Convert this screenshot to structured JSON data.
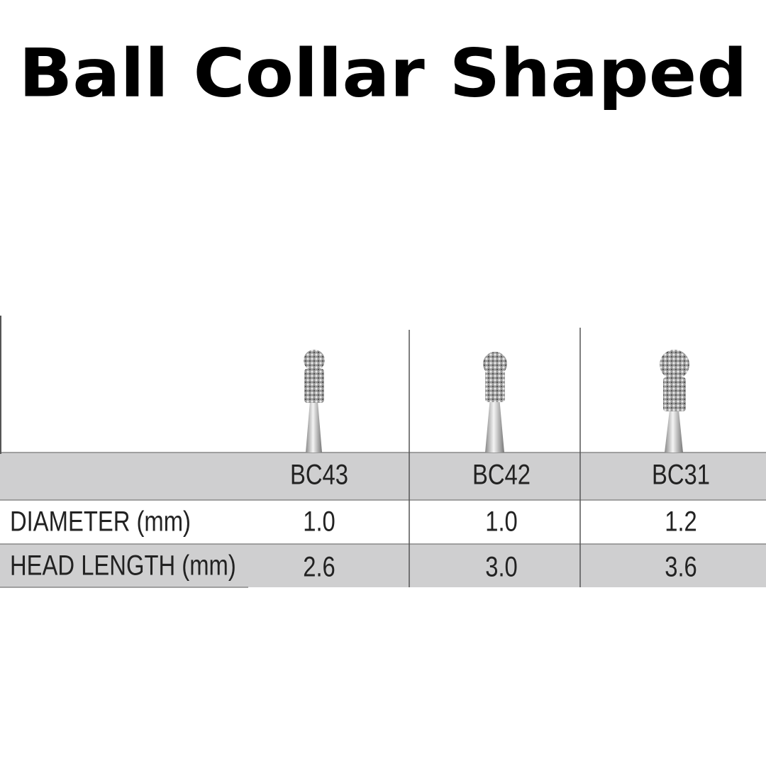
{
  "header": {
    "title": "Ball Collar Shaped"
  },
  "table": {
    "columns": [
      "BC43",
      "BC42",
      "BC31"
    ],
    "rows": [
      [
        "DIAMETER (mm)",
        "1.0",
        "1.0",
        "1.2"
      ],
      [
        "HEAD LENGTH (mm)",
        "2.6",
        "3.0",
        "3.6"
      ]
    ]
  }
}
